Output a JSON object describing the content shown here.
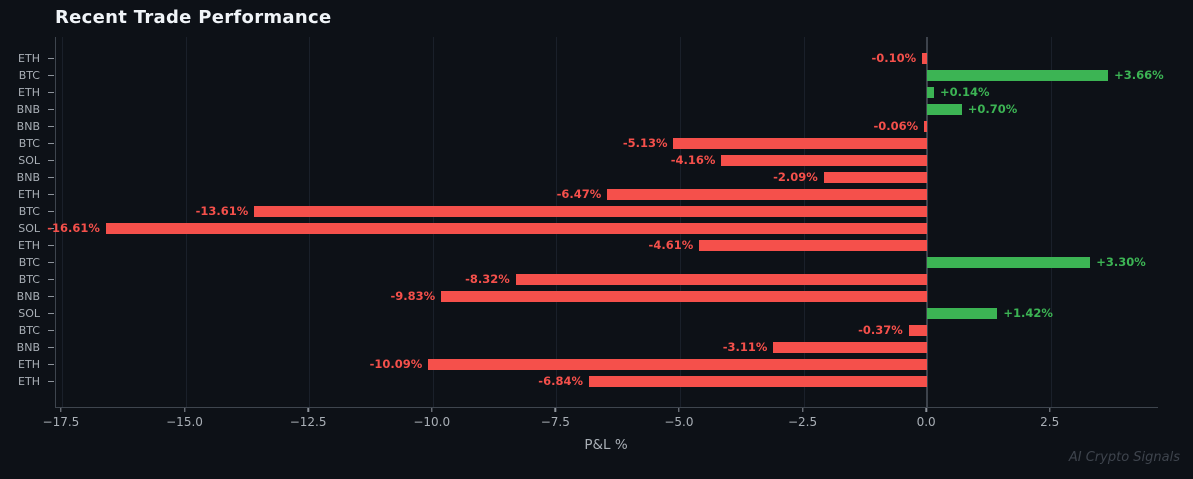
{
  "title": "Recent Trade Performance",
  "watermark": "AI Crypto Signals",
  "colors": {
    "background": "#0d1117",
    "positive": "#3cb454",
    "negative": "#f5504b",
    "grid": "#1a202a",
    "zero_line": "#3d434c",
    "spine": "#3e454e",
    "tick_label": "#a9afb6",
    "title_text": "#f0f4f8",
    "watermark_text": "#3e444d"
  },
  "chart_data": {
    "type": "bar",
    "orientation": "horizontal",
    "title": "Recent Trade Performance",
    "xlabel": "P&L %",
    "ylabel": "",
    "grid": true,
    "legend": false,
    "zero_line": true,
    "categories": [
      "ETH",
      "BTC",
      "ETH",
      "BNB",
      "BNB",
      "BTC",
      "SOL",
      "BNB",
      "ETH",
      "BTC",
      "SOL",
      "ETH",
      "BTC",
      "BTC",
      "BNB",
      "SOL",
      "BTC",
      "BNB",
      "ETH",
      "ETH"
    ],
    "values": [
      -0.1,
      3.66,
      0.14,
      0.7,
      -0.06,
      -5.13,
      -4.16,
      -2.09,
      -6.47,
      -13.61,
      -16.61,
      -4.61,
      3.3,
      -8.32,
      -9.83,
      1.42,
      -0.37,
      -3.11,
      -10.09,
      -6.84
    ],
    "value_labels": [
      "-0.10%",
      "+3.66%",
      "+0.14%",
      "+0.70%",
      "-0.06%",
      "-5.13%",
      "-4.16%",
      "-2.09%",
      "-6.47%",
      "-13.61%",
      "-16.61%",
      "-4.61%",
      "+3.30%",
      "-8.32%",
      "-9.83%",
      "+1.42%",
      "-0.37%",
      "-3.11%",
      "-10.09%",
      "-6.84%"
    ],
    "xlim": [
      -17.62,
      4.67
    ],
    "x_ticks": [
      -17.5,
      -15.0,
      -12.5,
      -10.0,
      -7.5,
      -5.0,
      -2.5,
      0.0,
      2.5
    ],
    "x_tick_labels": [
      "−17.5",
      "−15.0",
      "−12.5",
      "−10.0",
      "−7.5",
      "−5.0",
      "−2.5",
      "0.0",
      "2.5"
    ]
  }
}
